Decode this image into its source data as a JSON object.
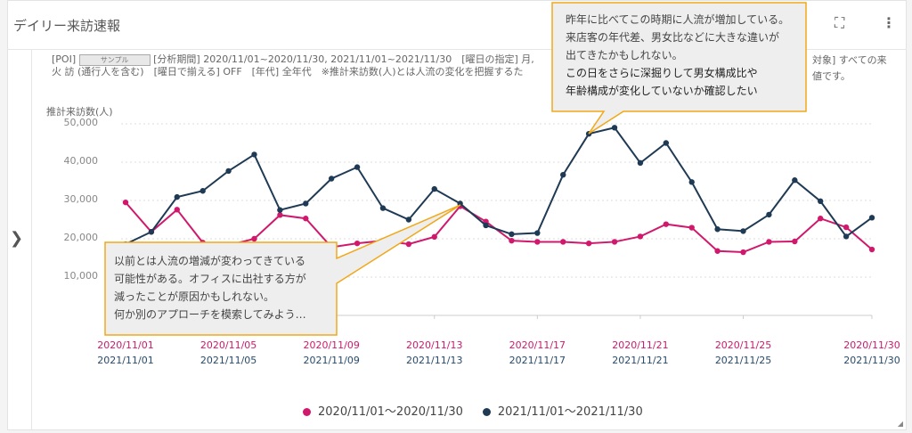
{
  "header": {
    "title": "デイリー来訪速報",
    "fullscreen_icon": "expand-icon",
    "menu_icon": "more-vertical-icon"
  },
  "meta": {
    "line1_prefix": "[POI]",
    "poi_value": "サンプル",
    "line1": "[分析期間] 2020/11/01~2020/11/30, 2021/11/01~2021/11/30　[曜日の指定] 月, 火",
    "line1_tail": "対象] すべての来",
    "line2": "訪 (通行人を含む)　[曜日で揃える] OFF　[年代] 全年代　※推計来訪数(人)とは人流の変化を把握するた",
    "line2_tail": "値です。"
  },
  "chart_data": {
    "type": "line",
    "ylabel": "推計来訪数(人)",
    "ylim": [
      0,
      50000
    ],
    "yticks": [
      "50,000",
      "40,000",
      "30,000",
      "20,000",
      "10,000"
    ],
    "grid": true,
    "x_labels_2020": [
      "2020/11/01",
      "2020/11/05",
      "2020/11/09",
      "2020/11/13",
      "2020/11/17",
      "2020/11/21",
      "2020/11/25",
      "2020/11/30"
    ],
    "x_labels_2021": [
      "2021/11/01",
      "2021/11/05",
      "2021/11/09",
      "2021/11/13",
      "2021/11/17",
      "2021/11/21",
      "2021/11/25",
      "2021/11/30"
    ],
    "legend_position": "bottom",
    "series": [
      {
        "name": "2020/11/01～2020/11/30",
        "color": "#d0186d",
        "values": [
          29500,
          21800,
          27600,
          19000,
          18300,
          20000,
          26200,
          25300,
          17800,
          18800,
          19500,
          18600,
          20500,
          28500,
          24500,
          19500,
          19200,
          19200,
          18800,
          19200,
          20600,
          23800,
          22900,
          16800,
          16500,
          19200,
          19300,
          25300,
          23000,
          17200
        ]
      },
      {
        "name": "2021/11/01～2021/11/30",
        "color": "#1f3a55",
        "values": [
          18600,
          21800,
          30900,
          32500,
          37700,
          42000,
          27500,
          29200,
          35700,
          38700,
          28000,
          25000,
          33000,
          29200,
          23500,
          21200,
          21500,
          36700,
          47400,
          49000,
          39800,
          45000,
          34800,
          22500,
          22000,
          26300,
          35300,
          29800,
          20600,
          25500
        ]
      }
    ]
  },
  "callouts": {
    "top": [
      "昨年に比べてこの時期に人流が増加している。",
      "来店客の年代差、男女比などに大きな違いが",
      "出てきたかもしれない。",
      "この日をさらに深掘りして男女構成比や",
      "年齢構成が変化していないか確認したい"
    ],
    "bottom": [
      "以前とは人流の増減が変わってきている",
      "可能性がある。オフィスに出社する方が",
      "減ったことが原因かもしれない。",
      "何か別のアプローチを模索してみよう…"
    ]
  }
}
